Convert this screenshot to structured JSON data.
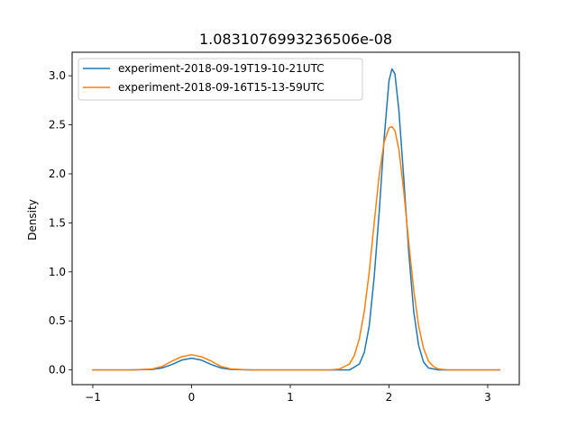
{
  "chart_data": {
    "type": "line",
    "title": "1.0831076993236506e-08",
    "xlabel": "",
    "ylabel": "Density",
    "xlim": [
      -1.21,
      3.32
    ],
    "ylim": [
      -0.15,
      3.24
    ],
    "xticks": [
      -1,
      0,
      1,
      2,
      3
    ],
    "xtick_labels": [
      "−1",
      "0",
      "1",
      "2",
      "3"
    ],
    "yticks": [
      0.0,
      0.5,
      1.0,
      1.5,
      2.0,
      2.5,
      3.0
    ],
    "ytick_labels": [
      "0.0",
      "0.5",
      "1.0",
      "1.5",
      "2.0",
      "2.5",
      "3.0"
    ],
    "grid": false,
    "legend_position": "upper-left",
    "series": [
      {
        "name": "experiment-2018-09-19T19-10-21UTC",
        "color": "#1f77b4",
        "x": [
          -1.0,
          -0.8,
          -0.6,
          -0.4,
          -0.3,
          -0.2,
          -0.1,
          0.0,
          0.1,
          0.2,
          0.3,
          0.4,
          0.6,
          0.8,
          1.0,
          1.2,
          1.4,
          1.5,
          1.6,
          1.7,
          1.75,
          1.8,
          1.85,
          1.9,
          1.95,
          2.0,
          2.03,
          2.06,
          2.1,
          2.15,
          2.2,
          2.25,
          2.3,
          2.35,
          2.4,
          2.5,
          2.6,
          2.8,
          3.0,
          3.12
        ],
        "y": [
          0.0,
          0.0,
          0.0,
          0.005,
          0.02,
          0.055,
          0.1,
          0.12,
          0.1,
          0.055,
          0.02,
          0.005,
          0.0,
          0.0,
          0.0,
          0.0,
          0.0,
          0.0,
          0.0,
          0.06,
          0.18,
          0.45,
          0.95,
          1.6,
          2.35,
          2.95,
          3.07,
          3.02,
          2.65,
          1.95,
          1.2,
          0.6,
          0.25,
          0.08,
          0.02,
          0.0,
          0.0,
          0.0,
          0.0,
          0.0
        ]
      },
      {
        "name": "experiment-2018-09-16T15-13-59UTC",
        "color": "#ff7f0e",
        "x": [
          -1.0,
          -0.8,
          -0.6,
          -0.4,
          -0.3,
          -0.2,
          -0.1,
          0.0,
          0.1,
          0.2,
          0.3,
          0.4,
          0.6,
          0.8,
          1.0,
          1.2,
          1.4,
          1.5,
          1.6,
          1.65,
          1.7,
          1.75,
          1.8,
          1.85,
          1.9,
          1.95,
          2.0,
          2.03,
          2.06,
          2.1,
          2.15,
          2.2,
          2.25,
          2.3,
          2.35,
          2.4,
          2.45,
          2.5,
          2.6,
          2.8,
          3.0,
          3.12
        ],
        "y": [
          0.0,
          0.0,
          0.0,
          0.01,
          0.035,
          0.09,
          0.135,
          0.155,
          0.135,
          0.09,
          0.035,
          0.01,
          0.0,
          0.0,
          0.0,
          0.0,
          0.0,
          0.01,
          0.06,
          0.15,
          0.32,
          0.6,
          1.0,
          1.5,
          1.98,
          2.32,
          2.47,
          2.48,
          2.44,
          2.25,
          1.82,
          1.3,
          0.82,
          0.45,
          0.22,
          0.09,
          0.035,
          0.01,
          0.0,
          0.0,
          0.0,
          0.0
        ]
      }
    ]
  }
}
